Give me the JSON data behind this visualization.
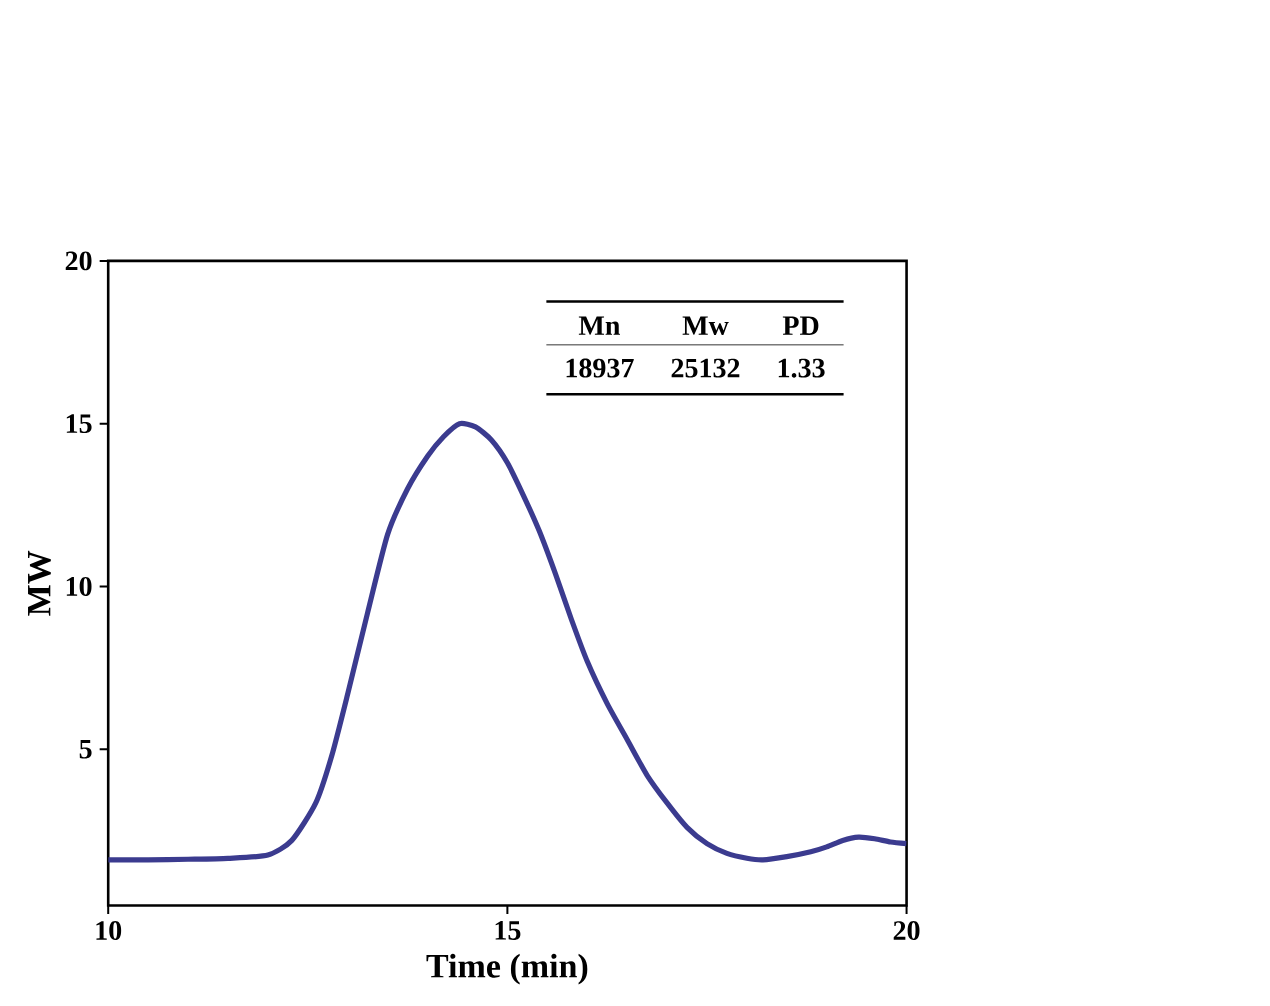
{
  "chart_data": {
    "type": "line",
    "xlabel": "Time (min)",
    "ylabel": "MW",
    "xlim": [
      10,
      20
    ],
    "ylim": [
      0.2,
      20
    ],
    "xticks": [
      10,
      15,
      20
    ],
    "yticks": [
      5,
      10,
      15,
      20
    ],
    "grid": false,
    "marker": "none",
    "line_style": "solid",
    "series": [
      {
        "color": "#3b3b8f",
        "x": [
          10,
          10.5,
          11,
          11.5,
          12,
          12.3,
          12.6,
          12.8,
          13,
          13.25,
          13.5,
          13.75,
          14,
          14.2,
          14.4,
          14.6,
          14.8,
          15,
          15.2,
          15.4,
          15.6,
          15.8,
          16,
          16.25,
          16.5,
          16.75,
          17,
          17.25,
          17.5,
          17.75,
          18,
          18.2,
          18.5,
          18.8,
          19,
          19.2,
          19.4,
          19.6,
          19.8,
          20
        ],
        "values": [
          1.6,
          1.6,
          1.62,
          1.65,
          1.75,
          2.2,
          3.35,
          4.8,
          6.7,
          9.2,
          11.6,
          13.0,
          14.0,
          14.6,
          15.0,
          14.9,
          14.5,
          13.8,
          12.8,
          11.7,
          10.4,
          9.0,
          7.7,
          6.4,
          5.3,
          4.2,
          3.35,
          2.6,
          2.1,
          1.8,
          1.65,
          1.6,
          1.7,
          1.85,
          2.0,
          2.2,
          2.3,
          2.25,
          2.15,
          2.1
        ]
      }
    ],
    "annotations": [
      "Mn",
      "Mw",
      "PD",
      "18937",
      "25132",
      "1.33"
    ]
  }
}
